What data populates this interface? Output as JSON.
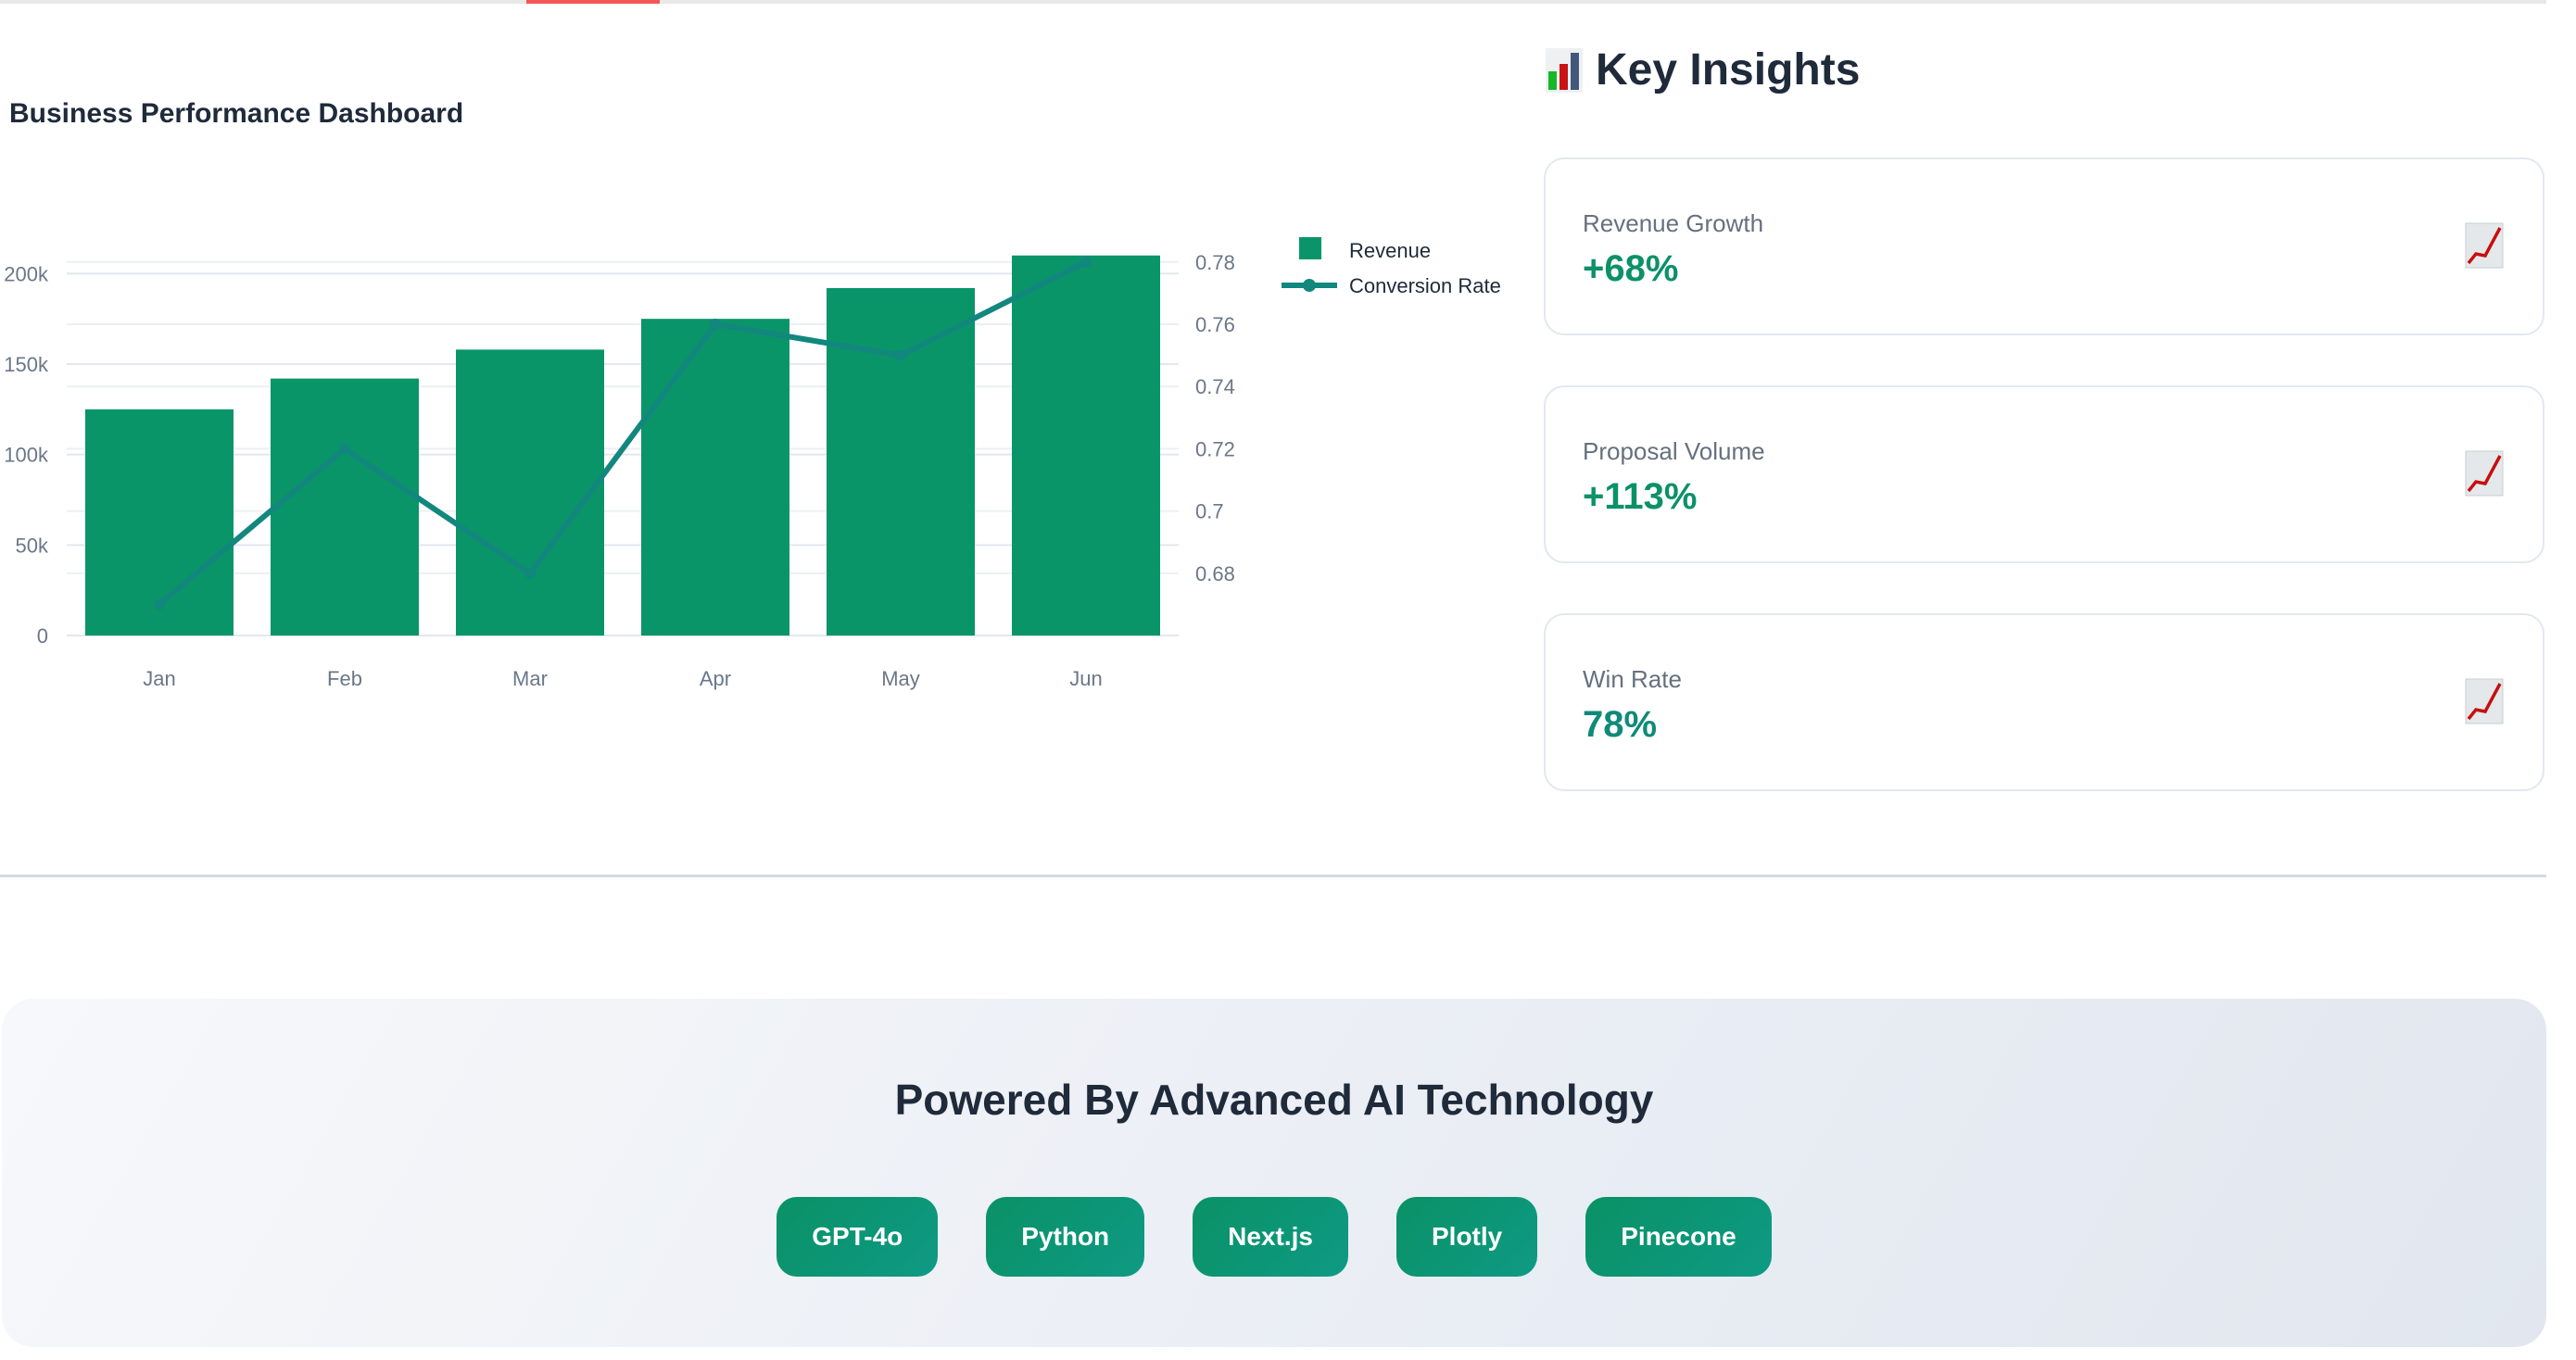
{
  "header": {
    "active_tab_color": "#f55555"
  },
  "chart_section": {
    "title": "Business Performance Dashboard"
  },
  "chart_data": {
    "type": "bar",
    "title": "Business Performance Dashboard",
    "categories": [
      "Jan",
      "Feb",
      "Mar",
      "Apr",
      "May",
      "Jun"
    ],
    "series": [
      {
        "name": "Revenue",
        "type": "bar",
        "axis": "left",
        "color": "#0a9569",
        "values": [
          125000,
          142000,
          158000,
          175000,
          192000,
          210000
        ]
      },
      {
        "name": "Conversion Rate",
        "type": "line",
        "axis": "right",
        "color": "#12877e",
        "values": [
          0.67,
          0.72,
          0.68,
          0.76,
          0.75,
          0.78
        ]
      }
    ],
    "y_left": {
      "ticks": [
        0,
        50000,
        100000,
        150000,
        200000
      ],
      "tick_labels": [
        "0",
        "50k",
        "100k",
        "150k",
        "200k"
      ],
      "range": [
        0,
        215000
      ]
    },
    "y_right": {
      "ticks": [
        0.68,
        0.7,
        0.72,
        0.74,
        0.76,
        0.78
      ],
      "tick_labels": [
        "0.68",
        "0.7",
        "0.72",
        "0.74",
        "0.76",
        "0.78"
      ],
      "range": [
        0.66,
        0.785
      ]
    },
    "xlabel": "",
    "ylabel": "",
    "grid": true,
    "legend": {
      "position": "top-right",
      "entries": [
        "Revenue",
        "Conversion Rate"
      ]
    }
  },
  "insights": {
    "title": "Key Insights",
    "title_icon": "bar-chart-icon",
    "cards": [
      {
        "label": "Revenue Growth",
        "value": "+68%",
        "icon": "chart-increasing-icon"
      },
      {
        "label": "Proposal Volume",
        "value": "+113%",
        "icon": "chart-increasing-icon"
      },
      {
        "label": "Win Rate",
        "value": "78%",
        "icon": "chart-increasing-icon"
      }
    ]
  },
  "footer": {
    "title": "Powered By Advanced AI Technology",
    "tech": [
      "GPT-4o",
      "Python",
      "Next.js",
      "Plotly",
      "Pinecone"
    ]
  }
}
